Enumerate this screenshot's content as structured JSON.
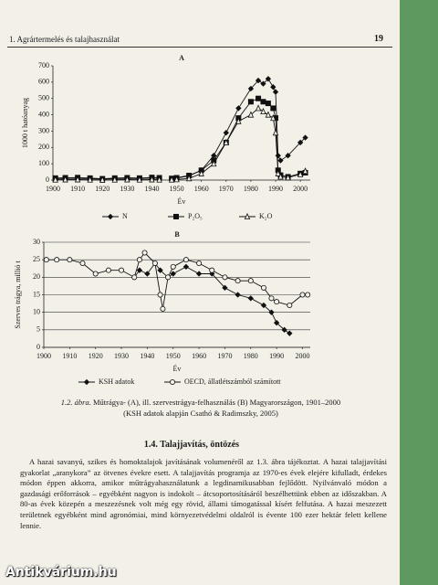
{
  "header": {
    "section": "1. Agrártermelés és talajhasználat",
    "page": "19"
  },
  "chart_data": [
    {
      "type": "line",
      "title": "A",
      "y_label": "1000 t hatóanyag",
      "x_label": "Év",
      "xlim": [
        1900,
        2004
      ],
      "xticks": [
        1900,
        1910,
        1920,
        1930,
        1940,
        1950,
        1960,
        1970,
        1980,
        1990,
        2000
      ],
      "ylim": [
        0,
        700
      ],
      "yticks": [
        0,
        100,
        200,
        300,
        400,
        500,
        600,
        700
      ],
      "grid": false,
      "series": [
        {
          "name": "N",
          "color": "#111111",
          "marker": "diamond",
          "marker_filled": true,
          "x": [
            1901,
            1905,
            1910,
            1915,
            1920,
            1925,
            1930,
            1935,
            1940,
            1943,
            1945,
            1948,
            1950,
            1955,
            1960,
            1965,
            1970,
            1975,
            1980,
            1983,
            1985,
            1987,
            1989,
            1990,
            1991,
            1992,
            1995,
            2000,
            2002
          ],
          "values": [
            8,
            10,
            10,
            8,
            6,
            9,
            10,
            9,
            12,
            10,
            null,
            8,
            12,
            25,
            60,
            150,
            290,
            440,
            560,
            610,
            590,
            620,
            570,
            540,
            150,
            120,
            150,
            230,
            260
          ]
        },
        {
          "name": "P₂O₅",
          "color": "#111111",
          "marker": "square",
          "marker_filled": true,
          "x": [
            1901,
            1905,
            1910,
            1915,
            1920,
            1925,
            1930,
            1935,
            1940,
            1943,
            1945,
            1948,
            1950,
            1955,
            1960,
            1965,
            1970,
            1975,
            1980,
            1983,
            1985,
            1987,
            1989,
            1990,
            1991,
            1992,
            1995,
            2000,
            2002
          ],
          "values": [
            12,
            14,
            15,
            12,
            8,
            12,
            14,
            12,
            16,
            14,
            null,
            10,
            14,
            28,
            60,
            120,
            230,
            380,
            480,
            500,
            480,
            470,
            440,
            380,
            60,
            30,
            20,
            40,
            45
          ]
        },
        {
          "name": "K₂O",
          "color": "#111111",
          "marker": "triangle",
          "marker_filled": false,
          "x": [
            1901,
            1905,
            1910,
            1915,
            1920,
            1925,
            1930,
            1935,
            1940,
            1943,
            1945,
            1948,
            1950,
            1955,
            1960,
            1965,
            1970,
            1975,
            1980,
            1983,
            1985,
            1987,
            1989,
            1990,
            1991,
            1992,
            1995,
            2000,
            2002
          ],
          "values": [
            2,
            3,
            3,
            2,
            1,
            2,
            3,
            2,
            3,
            2,
            null,
            2,
            4,
            10,
            40,
            100,
            230,
            360,
            400,
            440,
            420,
            400,
            380,
            290,
            40,
            20,
            15,
            35,
            55
          ]
        }
      ]
    },
    {
      "type": "line",
      "title": "B",
      "y_label": "Szerves trágya, millió t",
      "x_label": "Év",
      "xlim": [
        1900,
        2003
      ],
      "xticks": [
        1900,
        1910,
        1920,
        1930,
        1940,
        1950,
        1960,
        1970,
        1980,
        1990,
        2000
      ],
      "ylim": [
        0,
        30
      ],
      "yticks": [
        0,
        5,
        10,
        15,
        20,
        25,
        30
      ],
      "grid": true,
      "series": [
        {
          "name": "KSH adatok",
          "color": "#111111",
          "marker": "diamond",
          "marker_filled": true,
          "x": [
            1935,
            1937,
            1940,
            1943,
            1945,
            1948,
            1950,
            1955,
            1960,
            1965,
            1970,
            1975,
            1980,
            1985,
            1988,
            1990,
            1993,
            1995
          ],
          "values": [
            20,
            22,
            21,
            24,
            22,
            20,
            21,
            23,
            21,
            21,
            17,
            15,
            14,
            12,
            10,
            7,
            5,
            4
          ]
        },
        {
          "name": "OECD, állatlétszámból számított",
          "color": "#111111",
          "marker": "circle",
          "marker_filled": false,
          "x": [
            1901,
            1905,
            1910,
            1915,
            1920,
            1925,
            1930,
            1935,
            1937,
            1939,
            1943,
            1945,
            1946,
            1948,
            1950,
            1955,
            1960,
            1965,
            1970,
            1975,
            1980,
            1985,
            1988,
            1990,
            1995,
            2000,
            2002
          ],
          "values": [
            25,
            25,
            25,
            24,
            21,
            22,
            22,
            20,
            25,
            27,
            24,
            15,
            11,
            20,
            23,
            25,
            24,
            22,
            20,
            19,
            19,
            17,
            14,
            13,
            12,
            15,
            15
          ]
        }
      ]
    }
  ],
  "caption": {
    "label": "1.2. ábra.",
    "text": "Műtrágya- (A), ill. szervestrágya-felhasználás (B) Magyarországon, 1901–2000",
    "source": "(KSH adatok alapján Csathó & Radimszky, 2005)"
  },
  "section": {
    "heading": "1.4. Talajjavítás, öntözés",
    "paragraph": "A hazai savanyú, szikes és homoktalajok javításának volumenéről az 1.3. ábra tájékoztat. A hazai talajjavítási gyakorlat „aranykora” az ötvenes évekre esett. A talajjavítás programja az 1970-es évek elejére kifulladt, érdekes módon éppen akkorra, amikor műtrágyahasználatunk a legdinamikusabban fejlődött. Nyilvánvaló módon a gazdasági erőforrások – egyébként nagyon is indokolt – átcsoportosításáról beszélhettünk ebben az időszakban. A 80-as évek közepén a meszezésnek volt még egy rövid, állami támogatással kísért felfutása. A hazai meszezett területnek egyébként mind agronómiai, mind környezetvédelmi oldalról is évente 100 ezer hektár felett kellene lennie."
  },
  "watermark": "Antikvárium.hu"
}
